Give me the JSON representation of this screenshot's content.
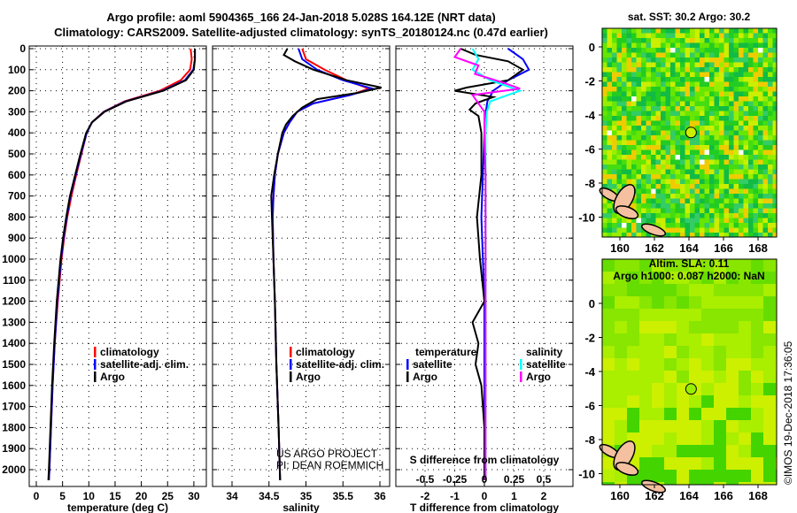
{
  "title": {
    "line1": "Argo profile: aoml 5904365_166 24-Jan-2018 5.028S 164.12E (NRT data)",
    "line2": "Climatology: CARS2009. Satellite-adjusted climatology: synTS_20180124.nc (0.47d earlier)"
  },
  "colors": {
    "climatology": "#ff0000",
    "satellite": "#0000ff",
    "argo": "#000000",
    "sal_satellite": "#00ffff",
    "sal_argo": "#ff00ff"
  },
  "credit": {
    "project": "US ARGO PROJECT",
    "pi": "PI: DEAN ROEMMICH",
    "stamp": "©IMOS 19-Dec-2018 17:36:05"
  },
  "chart_data": [
    {
      "type": "line",
      "name": "temperature",
      "xlabel": "temperature (deg C)",
      "ylabel": "",
      "ylim": [
        2080,
        0
      ],
      "xlim": [
        -1.3,
        32.3
      ],
      "xticks": [
        "0",
        "5",
        "10",
        "15",
        "20",
        "25",
        "30"
      ],
      "xtick_values": [
        0,
        5,
        10,
        15,
        20,
        25,
        30
      ],
      "yticks": [
        0,
        100,
        200,
        300,
        400,
        500,
        600,
        700,
        800,
        900,
        1000,
        1100,
        1200,
        1300,
        1400,
        1500,
        1600,
        1700,
        1800,
        1900,
        2000
      ],
      "legend": [
        "climatology",
        "satellite-adj. clim.",
        "Argo"
      ],
      "legend_position": "lower-right",
      "series": [
        {
          "name": "climatology",
          "color_key": "climatology",
          "depth": [
            0,
            50,
            100,
            150,
            200,
            250,
            300,
            350,
            400,
            500,
            600,
            700,
            800,
            900,
            1000,
            1200,
            1400,
            1600,
            1800,
            2000,
            2050
          ],
          "values": [
            29.4,
            29.6,
            29.3,
            27.5,
            23.5,
            16.8,
            12.8,
            10.6,
            9.6,
            8.6,
            7.6,
            6.7,
            5.9,
            5.3,
            4.8,
            4.1,
            3.5,
            3.1,
            2.8,
            2.5,
            2.4
          ]
        },
        {
          "name": "satellite-adj. clim.",
          "color_key": "satellite",
          "depth": [
            0,
            50,
            100,
            150,
            200,
            250,
            300,
            350,
            400,
            500,
            600,
            700,
            800,
            900,
            1000,
            1200,
            1400,
            1600,
            1800,
            2000,
            2050
          ],
          "values": [
            30.2,
            30.2,
            29.9,
            28.3,
            24.0,
            17.0,
            12.9,
            10.6,
            9.6,
            8.5,
            7.5,
            6.5,
            5.8,
            5.2,
            4.7,
            4.0,
            3.5,
            3.1,
            2.8,
            2.5,
            2.4
          ]
        },
        {
          "name": "Argo",
          "color_key": "argo",
          "depth": [
            0,
            50,
            100,
            150,
            200,
            250,
            300,
            350,
            400,
            500,
            600,
            700,
            800,
            900,
            1000,
            1200,
            1400,
            1600,
            1800,
            2000,
            2050
          ],
          "values": [
            30.2,
            30.2,
            30.0,
            28.5,
            24.2,
            17.2,
            13.0,
            10.6,
            9.5,
            8.4,
            7.4,
            6.4,
            5.7,
            5.1,
            4.6,
            3.9,
            3.4,
            3.0,
            2.7,
            2.4,
            2.3
          ]
        }
      ]
    },
    {
      "type": "line",
      "name": "salinity",
      "xlabel": "salinity",
      "ylim": [
        2080,
        0
      ],
      "xlim": [
        33.74,
        36.14
      ],
      "xticks": [
        "34",
        "34.5",
        "35",
        "35.5",
        "36"
      ],
      "xtick_values": [
        34,
        34.5,
        35,
        35.5,
        36
      ],
      "legend": [
        "climatology",
        "satellite-adj. clim.",
        "Argo"
      ],
      "legend_position": "lower-right",
      "series": [
        {
          "name": "climatology",
          "color_key": "climatology",
          "depth": [
            0,
            50,
            100,
            150,
            190,
            220,
            260,
            300,
            350,
            400,
            500,
            600,
            700,
            800,
            1000,
            1200,
            1500,
            1800,
            2050
          ],
          "values": [
            34.95,
            35.0,
            35.25,
            35.55,
            35.85,
            35.6,
            35.1,
            34.88,
            34.78,
            34.7,
            34.62,
            34.58,
            34.56,
            34.55,
            34.56,
            34.58,
            34.6,
            34.63,
            34.65
          ]
        },
        {
          "name": "satellite-adj. clim.",
          "color_key": "satellite",
          "depth": [
            0,
            50,
            100,
            150,
            190,
            220,
            260,
            300,
            350,
            400,
            500,
            600,
            700,
            800,
            1000,
            1200,
            1500,
            1800,
            2050
          ],
          "values": [
            34.9,
            34.95,
            35.15,
            35.5,
            35.9,
            35.6,
            35.1,
            34.88,
            34.78,
            34.7,
            34.62,
            34.58,
            34.56,
            34.55,
            34.56,
            34.58,
            34.6,
            34.63,
            34.65
          ]
        },
        {
          "name": "Argo",
          "color_key": "argo",
          "depth": [
            0,
            30,
            60,
            100,
            150,
            185,
            210,
            240,
            280,
            320,
            360,
            400,
            500,
            600,
            700,
            800,
            900,
            1000,
            1200,
            1500,
            1800,
            2050
          ],
          "values": [
            34.75,
            34.7,
            34.85,
            35.1,
            35.55,
            36.02,
            35.7,
            35.15,
            34.95,
            34.82,
            34.73,
            34.68,
            34.62,
            34.57,
            34.53,
            34.54,
            34.55,
            34.56,
            34.58,
            34.6,
            34.63,
            34.65
          ]
        }
      ]
    },
    {
      "type": "line",
      "name": "differences",
      "xlabel": "T difference from climatology",
      "x2label": "S difference from climatology",
      "ylim": [
        2080,
        0
      ],
      "xlim": [
        -3,
        3
      ],
      "x2lim": [
        -0.75,
        0.75
      ],
      "xticks": [
        "-2",
        "-1",
        "0",
        "1",
        "2"
      ],
      "xtick_values": [
        -2,
        -1,
        0,
        1,
        2
      ],
      "x2ticks": [
        "-0.5",
        "-0.25",
        "0",
        "0.25",
        "0.5"
      ],
      "x2tick_values": [
        -0.5,
        -0.25,
        0,
        0.25,
        0.5
      ],
      "legend_titles": [
        "temperature",
        "salinity"
      ],
      "legend": [
        "satellite",
        "Argo",
        "satellite",
        "Argo"
      ],
      "series": [
        {
          "name": "T satellite",
          "axis": "T",
          "color_key": "satellite",
          "depth": [
            0,
            50,
            100,
            150,
            200,
            250,
            300,
            400,
            600,
            800,
            1000,
            1200,
            1500,
            2000,
            2050
          ],
          "values": [
            0.8,
            1.3,
            1.5,
            0.8,
            0.3,
            0.1,
            0.05,
            0,
            -0.05,
            -0.1,
            -0.05,
            0,
            0,
            0,
            0
          ]
        },
        {
          "name": "T Argo",
          "axis": "T",
          "color_key": "argo",
          "depth": [
            0,
            30,
            60,
            100,
            150,
            185,
            200,
            230,
            260,
            290,
            320,
            400,
            600,
            800,
            1000,
            1200,
            1300,
            1400,
            1500,
            1600,
            1700,
            1800,
            2000,
            2050
          ],
          "values": [
            -0.8,
            -0.3,
            0.8,
            1.3,
            0.8,
            -0.6,
            -1.0,
            0.3,
            -0.3,
            -0.5,
            -0.2,
            -0.1,
            -0.1,
            -0.25,
            -0.15,
            0,
            -0.4,
            -0.2,
            -0.3,
            -0.1,
            -0.05,
            0,
            0,
            0
          ]
        },
        {
          "name": "S satellite",
          "axis": "S",
          "color_key": "sal_satellite",
          "depth": [
            0,
            50,
            100,
            150,
            200,
            250,
            300,
            400,
            600,
            800,
            1000,
            1500,
            2050
          ],
          "values": [
            -0.1,
            -0.05,
            -0.1,
            0.05,
            0.3,
            0.05,
            0.02,
            0.01,
            0.01,
            0.01,
            0.01,
            0.01,
            0.01
          ]
        },
        {
          "name": "S Argo",
          "axis": "S",
          "color_key": "sal_argo",
          "depth": [
            0,
            40,
            80,
            120,
            160,
            190,
            220,
            260,
            300,
            400,
            600,
            800,
            1000,
            1500,
            2050
          ],
          "values": [
            -0.2,
            -0.25,
            -0.05,
            -0.08,
            0.15,
            0.3,
            -0.1,
            -0.05,
            0,
            0,
            0.01,
            0.01,
            0.01,
            0.01,
            0.01
          ]
        }
      ]
    },
    {
      "type": "heatmap",
      "name": "sst-map",
      "title": "sat. SST: 30.2 Argo: 30.2",
      "xticks": [
        "160",
        "162",
        "164",
        "166",
        "168"
      ],
      "xtick_values": [
        160,
        162,
        164,
        166,
        168
      ],
      "yticks": [
        "0",
        "-2",
        "-4",
        "-6",
        "-8",
        "-10"
      ],
      "ytick_values": [
        0,
        -2,
        -4,
        -6,
        -8,
        -10
      ],
      "xlim": [
        159,
        169.2
      ],
      "ylim": [
        -11,
        1
      ],
      "marker": {
        "lon": 164.12,
        "lat": -5.028
      }
    },
    {
      "type": "heatmap",
      "name": "sla-map",
      "title": "Altim. SLA: 0.11",
      "subtitle": "Argo h1000: 0.087 h2000: NaN",
      "xticks": [
        "160",
        "162",
        "164",
        "166",
        "168"
      ],
      "xtick_values": [
        160,
        162,
        164,
        166,
        168
      ],
      "yticks": [
        "0",
        "-2",
        "-4",
        "-6",
        "-8",
        "-10"
      ],
      "ytick_values": [
        0,
        -2,
        -4,
        -6,
        -8,
        -10
      ],
      "xlim": [
        159,
        169.2
      ],
      "ylim": [
        -11,
        1
      ],
      "marker": {
        "lon": 164.12,
        "lat": -5.028
      }
    }
  ]
}
